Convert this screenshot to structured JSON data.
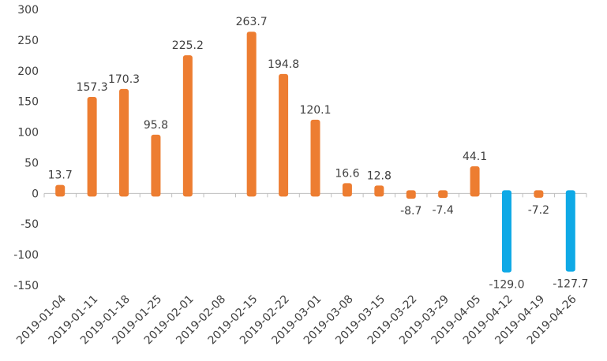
{
  "chart_data": {
    "type": "bar",
    "title": "",
    "xlabel": "",
    "ylabel": "",
    "categories": [
      "2019-01-04",
      "2019-01-11",
      "2019-01-18",
      "2019-01-25",
      "2019-02-01",
      "2019-02-08",
      "2019-02-15",
      "2019-02-22",
      "2019-03-01",
      "2019-03-08",
      "2019-03-15",
      "2019-03-22",
      "2019-03-29",
      "2019-04-05",
      "2019-04-12",
      "2019-04-19",
      "2019-04-26"
    ],
    "values": [
      13.7,
      157.3,
      170.3,
      95.8,
      225.2,
      null,
      263.7,
      194.8,
      120.1,
      16.6,
      12.8,
      -8.7,
      -7.4,
      44.1,
      -129.0,
      -7.2,
      -127.7
    ],
    "value_labels": [
      "13.7",
      "157.3",
      "170.3",
      "95.8",
      "225.2",
      "",
      "263.7",
      "194.8",
      "120.1",
      "16.6",
      "12.8",
      "-8.7",
      "-7.4",
      "44.1",
      "-129.0",
      "-7.2",
      "-127.7"
    ],
    "highlighted": [
      false,
      false,
      false,
      false,
      false,
      false,
      false,
      false,
      false,
      false,
      false,
      false,
      false,
      false,
      true,
      false,
      true
    ],
    "ylim": [
      -150,
      300
    ],
    "yticks": [
      300,
      250,
      200,
      150,
      100,
      50,
      0,
      -50,
      -100,
      -150
    ],
    "grid": false,
    "colors": {
      "bar": "#ED7D31",
      "highlight": "#0FA9E6",
      "axis": "#BFBFBF",
      "text": "#404040"
    }
  }
}
